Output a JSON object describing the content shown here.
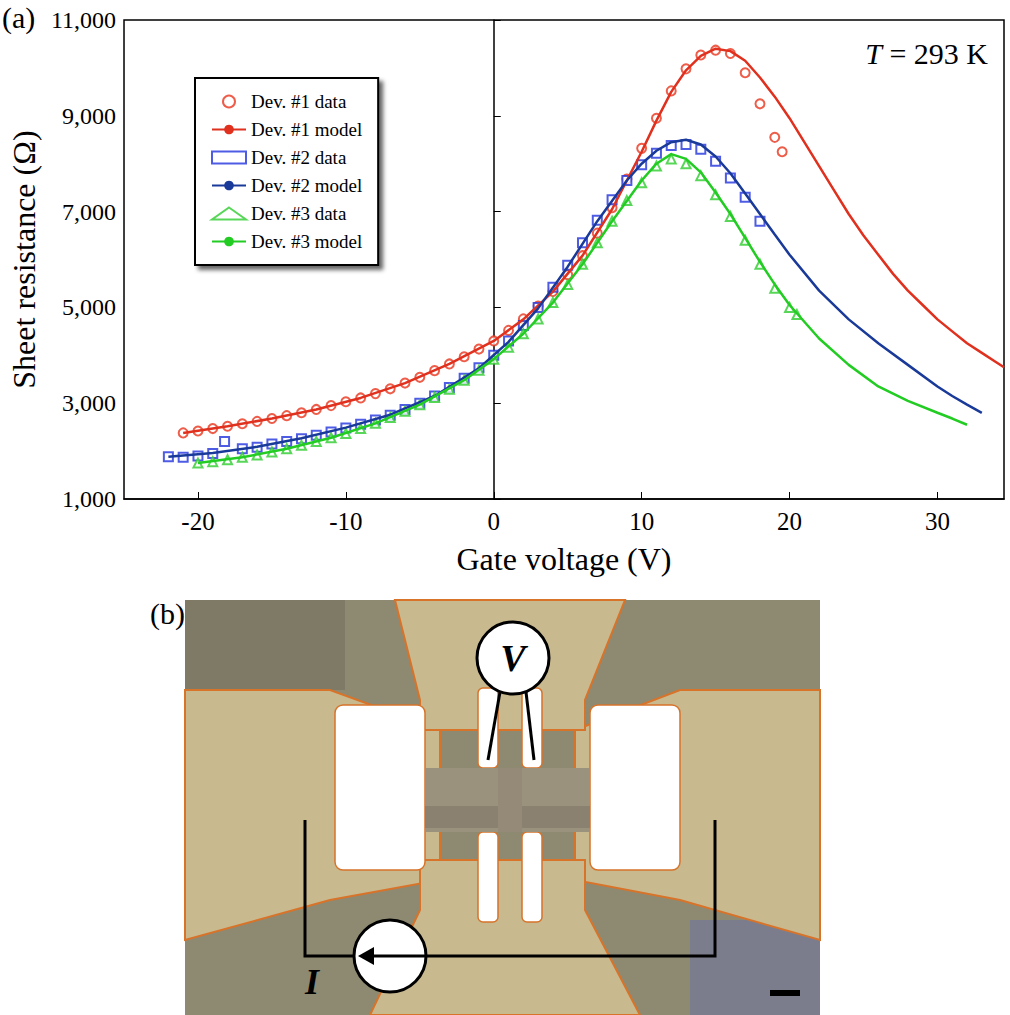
{
  "chart_data": {
    "type": "scatter",
    "panel_label": "(a)",
    "x_label": "Gate voltage (V)",
    "y_label": "Sheet resistance (Ω)",
    "annotation": "T = 293 K",
    "xlim": [
      -25,
      34.5
    ],
    "xticks": [
      -20,
      -10,
      0,
      10,
      20,
      30
    ],
    "ylim": [
      1000,
      11000
    ],
    "yticks": [
      1000,
      3000,
      5000,
      7000,
      9000,
      11000
    ],
    "legend": "upper left",
    "grid": false,
    "series": [
      {
        "name": "Dev. #1 data",
        "type": "scatter",
        "marker": "circle",
        "color": "#e8341c",
        "x": [
          -21,
          -20,
          -19,
          -18,
          -17,
          -16,
          -15,
          -14,
          -13,
          -12,
          -11,
          -10,
          -9,
          -8,
          -7,
          -6,
          -5,
          -4,
          -3,
          -2,
          -1,
          0,
          1,
          2,
          3,
          4,
          5,
          6,
          7,
          8,
          9,
          10,
          11,
          12,
          13,
          14,
          15,
          16,
          17,
          18,
          19,
          19.5
        ],
        "values": [
          2380,
          2420,
          2470,
          2520,
          2570,
          2620,
          2680,
          2740,
          2800,
          2870,
          2950,
          3030,
          3110,
          3200,
          3300,
          3420,
          3540,
          3680,
          3820,
          3970,
          4130,
          4300,
          4520,
          4760,
          5030,
          5330,
          5680,
          6080,
          6550,
          7080,
          7680,
          8320,
          8950,
          9520,
          9980,
          10270,
          10370,
          10300,
          9900,
          9250,
          8550,
          8250
        ]
      },
      {
        "name": "Dev. #1 model",
        "type": "line",
        "line_style": "solid",
        "color": "#e0301e",
        "x": [
          -21,
          -18,
          -15,
          -12,
          -9,
          -6,
          -3,
          0,
          2,
          4,
          6,
          8,
          10,
          11,
          12,
          13,
          14,
          15,
          16,
          17,
          18,
          19,
          20,
          21,
          22,
          23,
          24,
          25,
          26,
          27,
          28,
          29,
          30,
          31,
          32,
          33,
          34,
          34.5
        ],
        "values": [
          2380,
          2520,
          2680,
          2870,
          3110,
          3420,
          3820,
          4300,
          4750,
          5330,
          6080,
          7050,
          8250,
          8900,
          9500,
          9950,
          10250,
          10400,
          10350,
          10150,
          9800,
          9400,
          8950,
          8450,
          7950,
          7450,
          6950,
          6500,
          6100,
          5700,
          5350,
          5050,
          4750,
          4500,
          4250,
          4050,
          3850,
          3750
        ]
      },
      {
        "name": "Dev. #2 data",
        "type": "scatter",
        "marker": "square",
        "color": "#2233dd",
        "x": [
          -22,
          -21,
          -20,
          -19,
          -18.2,
          -17,
          -16,
          -15,
          -14,
          -13,
          -12,
          -11,
          -10,
          -9,
          -8,
          -7,
          -6,
          -5,
          -4,
          -3,
          -2,
          -1,
          0,
          1,
          2,
          3,
          4,
          5,
          6,
          7,
          8,
          9,
          10,
          11,
          12,
          13,
          14,
          15,
          16,
          17,
          18
        ],
        "values": [
          1880,
          1870,
          1900,
          1950,
          2200,
          2050,
          2080,
          2150,
          2200,
          2260,
          2330,
          2400,
          2480,
          2560,
          2650,
          2750,
          2870,
          3000,
          3150,
          3330,
          3520,
          3740,
          4000,
          4300,
          4620,
          5000,
          5420,
          5880,
          6350,
          6820,
          7250,
          7650,
          7980,
          8220,
          8380,
          8400,
          8300,
          8050,
          7700,
          7300,
          6800
        ]
      },
      {
        "name": "Dev. #2 model",
        "type": "line",
        "line_style": "solid",
        "color": "#1a3a99",
        "x": [
          -22,
          -19,
          -16,
          -13,
          -10,
          -7,
          -4,
          -1,
          1,
          3,
          5,
          7,
          9,
          10,
          11,
          12,
          13,
          14,
          15,
          16,
          17,
          18,
          19,
          20,
          22,
          24,
          26,
          28,
          30,
          31,
          32,
          33
        ],
        "values": [
          1880,
          1960,
          2090,
          2270,
          2490,
          2760,
          3150,
          3730,
          4280,
          4980,
          5850,
          6800,
          7650,
          8000,
          8270,
          8450,
          8500,
          8400,
          8150,
          7800,
          7380,
          6950,
          6520,
          6100,
          5350,
          4750,
          4250,
          3800,
          3350,
          3150,
          2970,
          2800
        ]
      },
      {
        "name": "Dev. #3 data",
        "type": "scatter",
        "marker": "triangle",
        "color": "#2ecc2e",
        "x": [
          -20,
          -19,
          -18,
          -17,
          -16,
          -15,
          -14,
          -13,
          -12,
          -11,
          -10,
          -9,
          -8,
          -7,
          -6,
          -5,
          -4,
          -3,
          -2,
          -1,
          0,
          1,
          2,
          3,
          4,
          5,
          6,
          7,
          8,
          9,
          10,
          11,
          12,
          13,
          14,
          15,
          16,
          17,
          18,
          19,
          20,
          20.5
        ],
        "values": [
          1750,
          1780,
          1820,
          1870,
          1920,
          1980,
          2050,
          2120,
          2200,
          2280,
          2370,
          2470,
          2580,
          2700,
          2830,
          2970,
          3120,
          3290,
          3480,
          3690,
          3920,
          4170,
          4450,
          4760,
          5100,
          5480,
          5900,
          6350,
          6800,
          7230,
          7600,
          7950,
          8100,
          8000,
          7750,
          7350,
          6900,
          6400,
          5900,
          5400,
          5000,
          4850
        ]
      },
      {
        "name": "Dev. #3 model",
        "type": "line",
        "line_style": "solid",
        "color": "#22cc22",
        "x": [
          -20,
          -17,
          -14,
          -11,
          -8,
          -5,
          -2,
          0,
          2,
          4,
          6,
          8,
          10,
          11,
          12,
          13,
          14,
          15,
          16,
          17,
          18,
          19,
          20,
          22,
          24,
          26,
          28,
          30,
          31,
          32
        ],
        "values": [
          1750,
          1870,
          2050,
          2280,
          2580,
          2970,
          3480,
          3920,
          4450,
          5100,
          5900,
          6800,
          7650,
          8000,
          8200,
          8100,
          7820,
          7400,
          6950,
          6450,
          5950,
          5480,
          5050,
          4350,
          3800,
          3350,
          3050,
          2800,
          2680,
          2550
        ]
      }
    ]
  },
  "diagram": {
    "panel_label": "(b)",
    "voltmeter": "V",
    "current_source": "I"
  }
}
